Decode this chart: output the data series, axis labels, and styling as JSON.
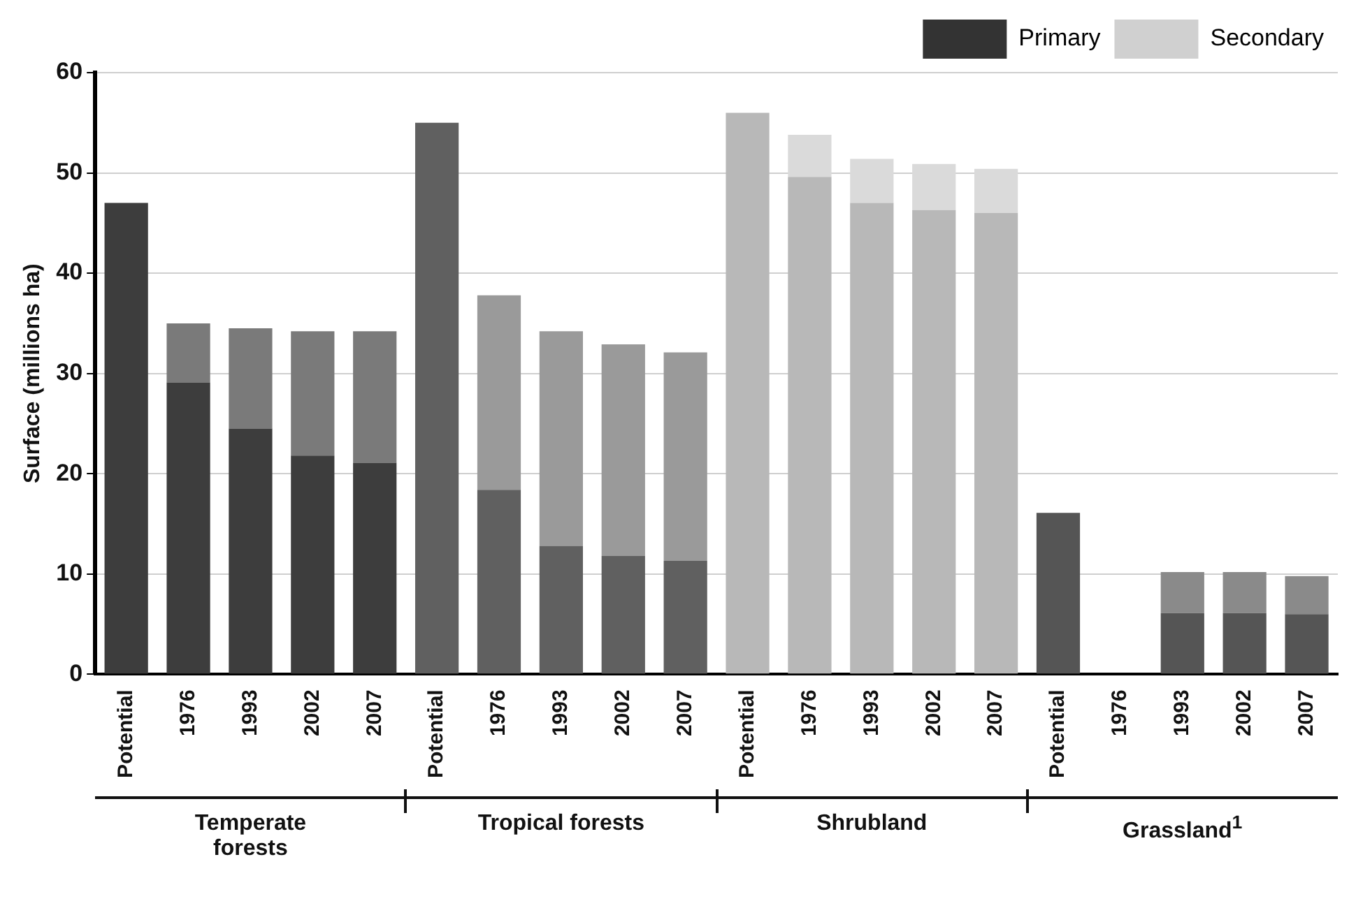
{
  "chart_data": {
    "type": "bar",
    "stacked": true,
    "ylabel": "Surface (millions ha)",
    "categories": [
      "Potential",
      "1976",
      "1993",
      "2002",
      "2007",
      "Potential",
      "1976",
      "1993",
      "2002",
      "2007",
      "Potential",
      "1976",
      "1993",
      "2002",
      "2007",
      "Potential",
      "1976",
      "1993",
      "2002",
      "2007"
    ],
    "series": [
      {
        "name": "Primary",
        "color": "#333333",
        "colors": [
          "#3d3d3d",
          "#3d3d3d",
          "#3d3d3d",
          "#3d3d3d",
          "#3d3d3d",
          "#606060",
          "#606060",
          "#606060",
          "#606060",
          "#606060",
          "#b8b8b8",
          "#b8b8b8",
          "#b8b8b8",
          "#b8b8b8",
          "#b8b8b8",
          "#555555",
          "#555555",
          "#555555",
          "#555555",
          "#555555"
        ],
        "values": [
          47.0,
          29.1,
          24.5,
          21.8,
          21.1,
          55.0,
          18.4,
          12.8,
          11.8,
          11.3,
          56.0,
          49.6,
          47.0,
          46.3,
          46.0,
          16.1,
          null,
          6.1,
          6.1,
          6.0
        ]
      },
      {
        "name": "Secondary",
        "color": "#d0d0d0",
        "colors": [
          "#7a7a7a",
          "#7a7a7a",
          "#7a7a7a",
          "#7a7a7a",
          "#7a7a7a",
          "#9a9a9a",
          "#9a9a9a",
          "#9a9a9a",
          "#9a9a9a",
          "#9a9a9a",
          "#dadada",
          "#dadada",
          "#dadada",
          "#dadada",
          "#dadada",
          "#8a8a8a",
          "#8a8a8a",
          "#8a8a8a",
          "#8a8a8a",
          "#8a8a8a"
        ],
        "values": [
          null,
          5.9,
          10.0,
          12.4,
          13.1,
          null,
          19.4,
          21.4,
          21.1,
          20.8,
          null,
          4.2,
          4.4,
          4.6,
          4.4,
          null,
          null,
          4.1,
          4.1,
          3.8
        ]
      }
    ],
    "ylim": [
      0,
      60
    ],
    "yticks": [
      0,
      10,
      20,
      30,
      40,
      50,
      60
    ],
    "grid": "y",
    "legend": "top right",
    "annotations": [
      "Temperate forests",
      "Tropical forests",
      "Shrubland",
      "Grassland$^{1}$"
    ]
  }
}
